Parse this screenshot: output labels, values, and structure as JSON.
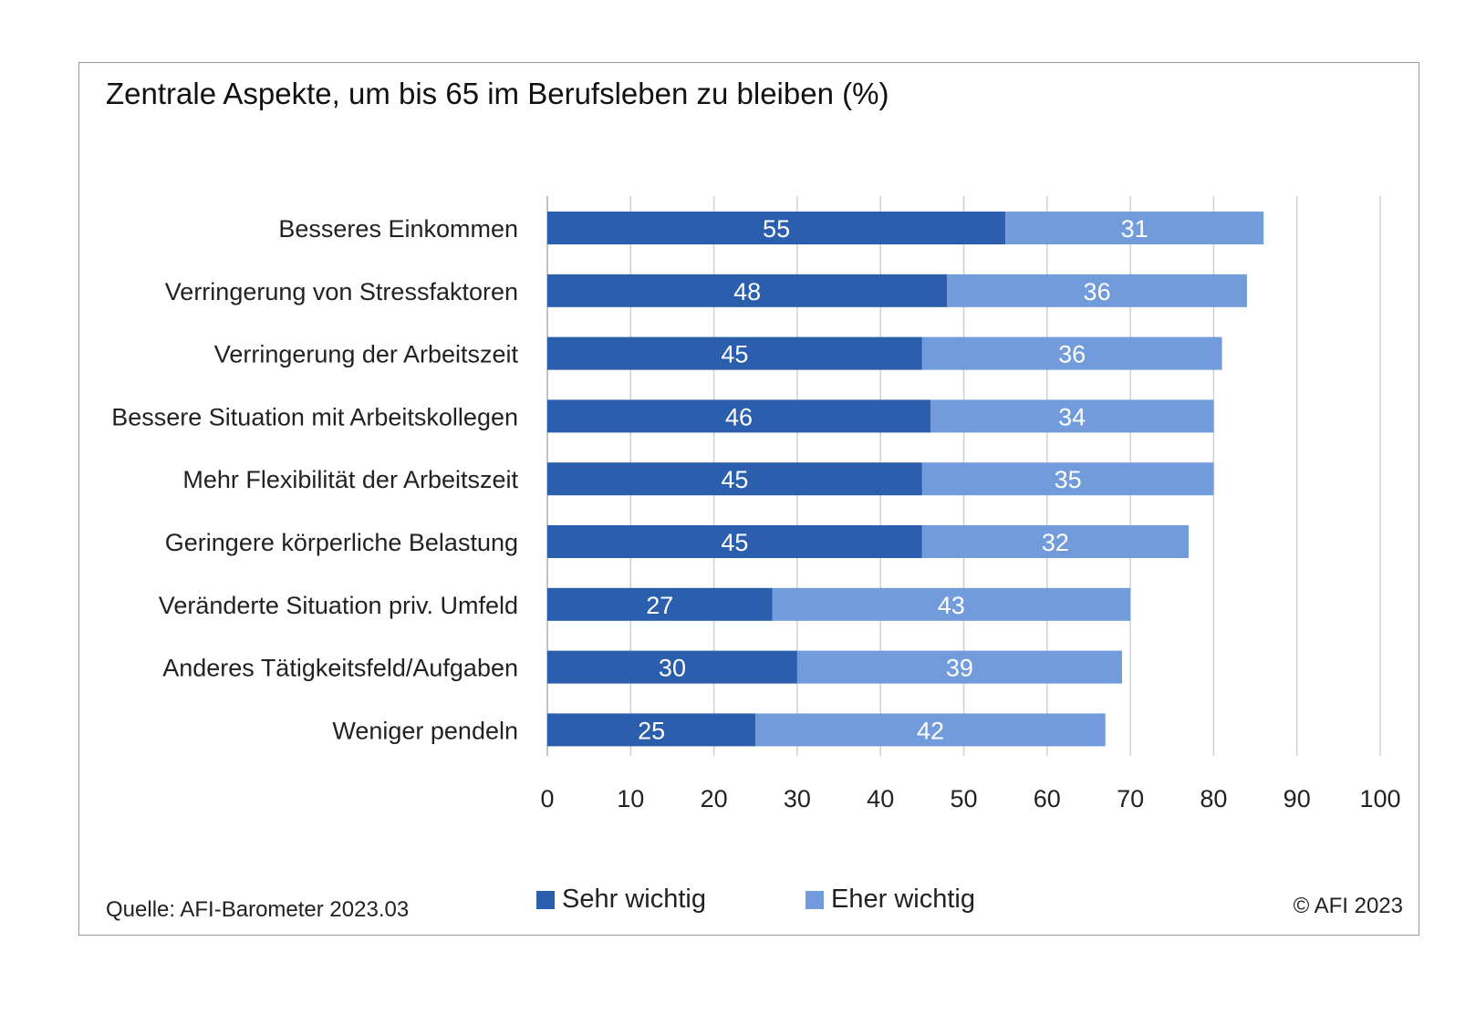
{
  "chart_data": {
    "type": "bar",
    "orientation": "horizontal",
    "stacked": true,
    "title": "Zentrale Aspekte, um bis 65 im Berufsleben zu bleiben  (%)",
    "categories": [
      "Besseres Einkommen",
      "Verringerung von Stressfaktoren",
      "Verringerung der Arbeitszeit",
      "Bessere Situation mit Arbeitskollegen",
      "Mehr Flexibilität der Arbeitszeit",
      "Geringere körperliche Belastung",
      "Veränderte Situation priv. Umfeld",
      "Anderes Tätigkeitsfeld/Aufgaben",
      "Weniger pendeln"
    ],
    "series": [
      {
        "name": "Sehr wichtig",
        "color": "#2b5fad",
        "values": [
          55,
          48,
          45,
          46,
          45,
          45,
          27,
          30,
          25
        ]
      },
      {
        "name": "Eher wichtig",
        "color": "#729bdc",
        "values": [
          31,
          36,
          36,
          34,
          35,
          32,
          43,
          39,
          42
        ]
      }
    ],
    "xlim": [
      0,
      100
    ],
    "xticks": [
      0,
      10,
      20,
      30,
      40,
      50,
      60,
      70,
      80,
      90,
      100
    ],
    "grid": true,
    "legend_position": "bottom"
  },
  "source_text": "Quelle: AFI-Barometer 2023.03",
  "copyright_text": "© AFI 2023"
}
